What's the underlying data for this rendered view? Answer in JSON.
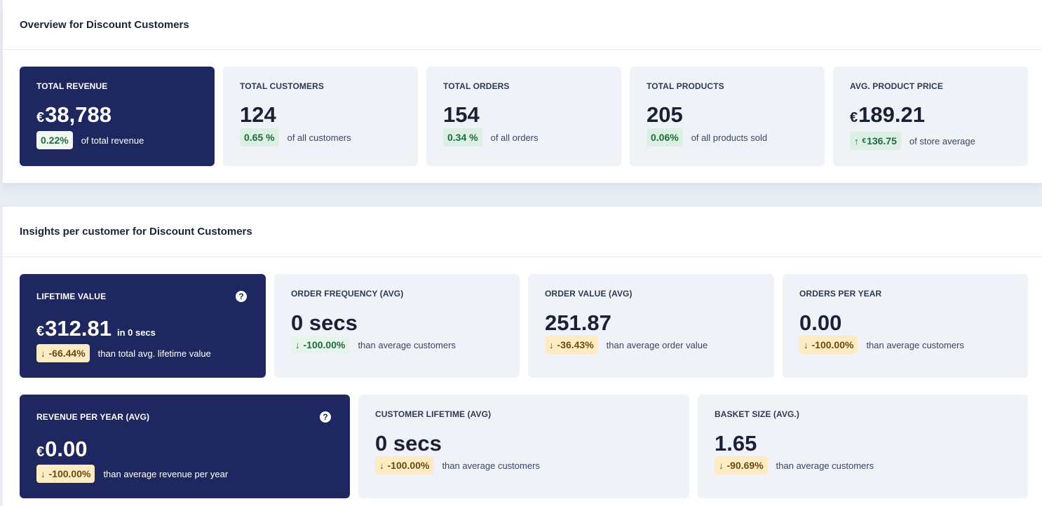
{
  "overview": {
    "title": "Overview for Discount Customers",
    "cards": [
      {
        "label": "TOTAL REVENUE",
        "currency": "€",
        "value": "38,788",
        "badge": "0.22%",
        "text": "of total revenue"
      },
      {
        "label": "TOTAL CUSTOMERS",
        "value": "124",
        "badge": "0.65 %",
        "text": "of all customers"
      },
      {
        "label": "TOTAL ORDERS",
        "value": "154",
        "badge": "0.34 %",
        "text": "of all orders"
      },
      {
        "label": "TOTAL PRODUCTS",
        "value": "205",
        "badge": "0.06%",
        "text": "of all products sold"
      },
      {
        "label": "AVG. PRODUCT PRICE",
        "currency": "€",
        "value": "189.21",
        "badge_arrow": "↑",
        "badge_currency": "€",
        "badge": "136.75",
        "text": "of store average"
      }
    ]
  },
  "insights": {
    "title": "Insights per customer for Discount Customers",
    "cards": [
      {
        "label": "LIFETIME VALUE",
        "currency": "€",
        "value": "312.81",
        "suffix": "in 0 secs",
        "badge_arrow": "↓",
        "badge": "-66.44%",
        "text": "than total avg. lifetime value",
        "help": "?"
      },
      {
        "label": "ORDER FREQUENCY (AVG)",
        "value": "0 secs",
        "badge_arrow": "↓",
        "badge": "-100.00%",
        "text": "than average customers"
      },
      {
        "label": "ORDER VALUE (AVG)",
        "value": "251.87",
        "badge_arrow": "↓",
        "badge": "-36.43%",
        "text": "than average order value"
      },
      {
        "label": "ORDERS PER YEAR",
        "value": "0.00",
        "badge_arrow": "↓",
        "badge": "-100.00%",
        "text": "than average customers"
      },
      {
        "label": "REVENUE PER YEAR (AVG)",
        "currency": "€",
        "value": "0.00",
        "badge_arrow": "↓",
        "badge": "-100.00%",
        "text": "than average revenue per year",
        "help": "?"
      },
      {
        "label": "CUSTOMER LIFETIME (AVG)",
        "value": "0 secs",
        "badge_arrow": "↓",
        "badge": "-100.00%",
        "text": "than average customers"
      },
      {
        "label": "BASKET SIZE (AVG.)",
        "value": "1.65",
        "badge_arrow": "↓",
        "badge": "-90.69%",
        "text": "than average customers"
      }
    ]
  }
}
